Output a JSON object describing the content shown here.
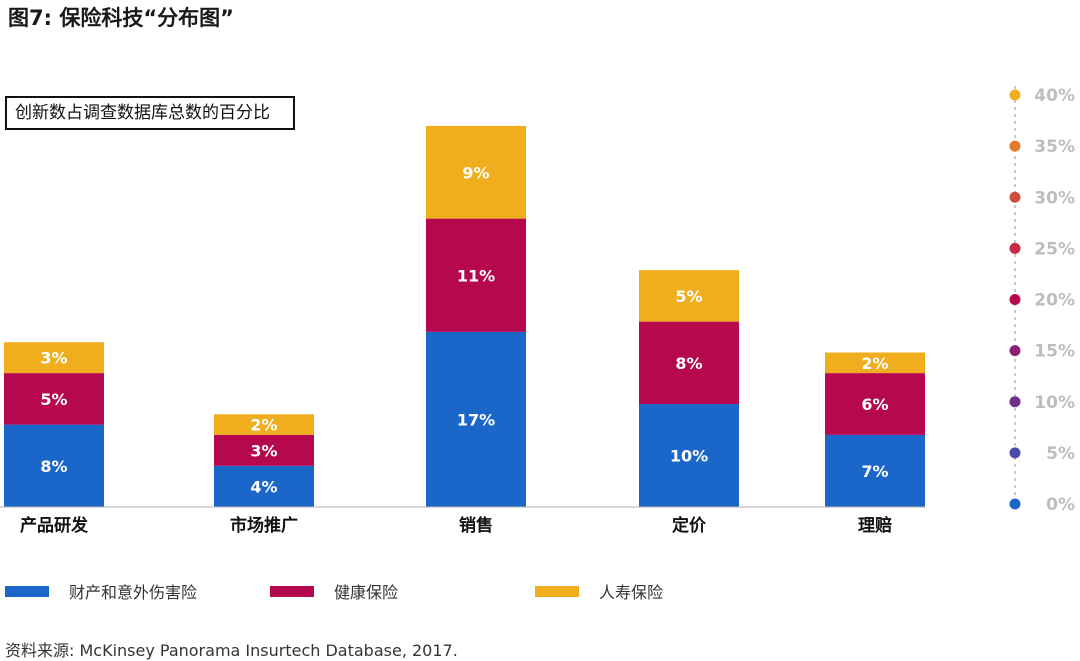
{
  "title": "图7: 保险科技“分布图”",
  "source": "资料来源: McKinsey Panorama Insurtech Database, 2017.",
  "colors": {
    "property": "#1b66c9",
    "health": "#b5084e",
    "life": "#f0ae1f",
    "axis_text": "#bdbdbd",
    "axis_line": "#c8c8c8"
  },
  "legend": [
    {
      "label": "财产和意外伤害险",
      "color": "#1b66c9"
    },
    {
      "label": "健康保险",
      "color": "#b5084e"
    },
    {
      "label": "人寿保险",
      "color": "#f0ae1f"
    }
  ],
  "chart_data": {
    "type": "bar",
    "stacked": true,
    "title": "创新数占调查数据库总数的百分比",
    "categories": [
      "产品研发",
      "市场推广",
      "销售",
      "定价",
      "理赔"
    ],
    "series": [
      {
        "name": "财产和意外伤害险",
        "values": [
          8,
          4,
          17,
          10,
          7
        ],
        "labels": [
          "8%",
          "4%",
          "17%",
          "10%",
          "7%"
        ],
        "color": "#1b66c9"
      },
      {
        "name": "健康保险",
        "values": [
          5,
          3,
          11,
          8,
          6
        ],
        "labels": [
          "5%",
          "3%",
          "11%",
          "8%",
          "6%"
        ],
        "color": "#b5084e"
      },
      {
        "name": "人寿保险",
        "values": [
          3,
          2,
          9,
          5,
          2
        ],
        "labels": [
          "3%",
          "2%",
          "9%",
          "5%",
          "2%"
        ],
        "color": "#f0ae1f"
      }
    ],
    "ylim": [
      0,
      40
    ],
    "yticks": [
      {
        "value": 0,
        "label": "0%",
        "color": "#1b66c9"
      },
      {
        "value": 5,
        "label": "5%",
        "color": "#4a4aa8"
      },
      {
        "value": 10,
        "label": "10%",
        "color": "#6e2f8f"
      },
      {
        "value": 15,
        "label": "15%",
        "color": "#8b1f78"
      },
      {
        "value": 20,
        "label": "20%",
        "color": "#b5084e"
      },
      {
        "value": 25,
        "label": "25%",
        "color": "#c92a45"
      },
      {
        "value": 30,
        "label": "30%",
        "color": "#d24d3a"
      },
      {
        "value": 35,
        "label": "35%",
        "color": "#e07a2c"
      },
      {
        "value": 40,
        "label": "40%",
        "color": "#f0ae1f"
      }
    ],
    "y_axis_position": "right",
    "legend_position": "bottom",
    "grid": false
  }
}
